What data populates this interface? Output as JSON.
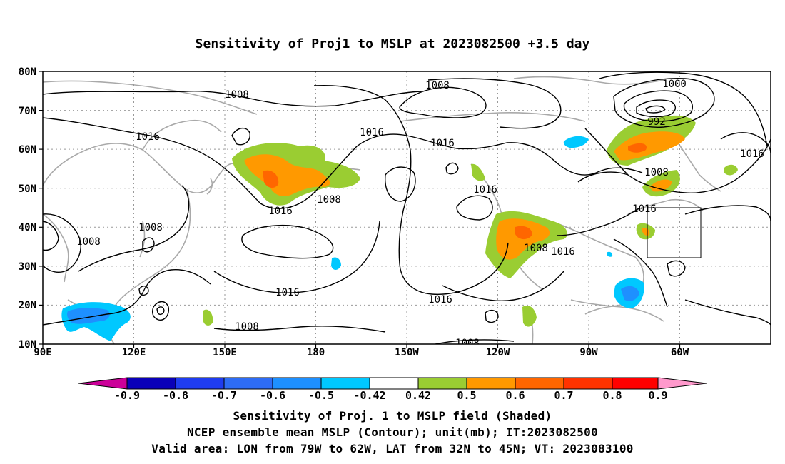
{
  "title": "Sensitivity of Proj1 to MSLP at 2023082500 +3.5 day",
  "map": {
    "lat_labels": [
      "80N",
      "70N",
      "60N",
      "50N",
      "40N",
      "30N",
      "20N",
      "10N"
    ],
    "lon_labels": [
      "90E",
      "120E",
      "150E",
      "180",
      "150W",
      "120W",
      "90W",
      "60W"
    ],
    "lat_range": [
      10,
      80
    ],
    "lon_range_deg_east": [
      90,
      330
    ],
    "gridlines": true,
    "valid_area": {
      "lon": [
        "79W",
        "62W"
      ],
      "lat": [
        "32N",
        "45N"
      ]
    }
  },
  "contour_labels": [
    "1008",
    "1016",
    "1008",
    "1016",
    "1000",
    "992",
    "1016",
    "1008",
    "1016",
    "1016",
    "1016",
    "1008",
    "1008",
    "1016",
    "1016",
    "1016",
    "1008",
    "1016",
    "1008",
    "1008",
    "1016",
    "1008"
  ],
  "colorbar": {
    "labels": [
      "-0.9",
      "-0.8",
      "-0.7",
      "-0.6",
      "-0.5",
      "-0.42",
      "0.42",
      "0.5",
      "0.6",
      "0.7",
      "0.8",
      "0.9"
    ],
    "colors": [
      "#0a00b8",
      "#1f3cf0",
      "#2e6cf5",
      "#1e90ff",
      "#00c8ff",
      "#ffffff",
      "#9acd32",
      "#ff9900",
      "#ff6600",
      "#ff3300",
      "#ff0000"
    ],
    "low_arrow_color": "#cc0099",
    "high_arrow_color": "#ff99cc"
  },
  "footer": {
    "line1": "Sensitivity of Proj. 1 to MSLP field (Shaded)",
    "line2": "NCEP ensemble mean MSLP (Contour); unit(mb); IT:2023082500",
    "line3": "Valid area: LON from 79W to 62W, LAT from 32N to 45N; VT: 2023083100"
  }
}
